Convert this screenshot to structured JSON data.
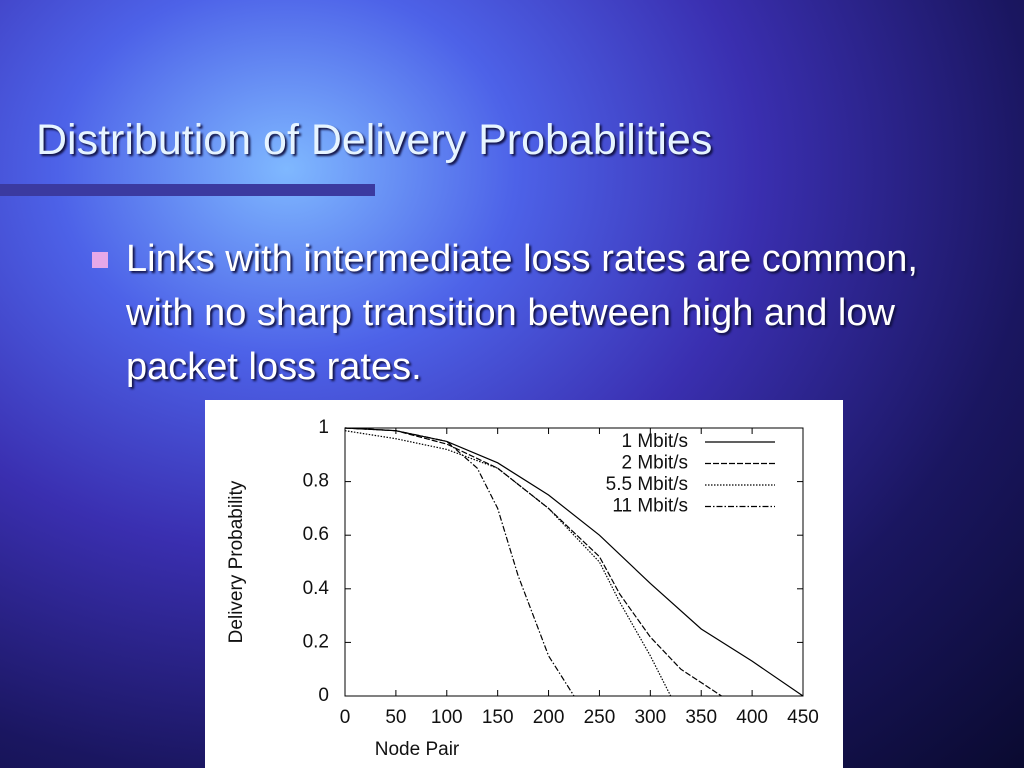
{
  "slide": {
    "title": "Distribution of Delivery Probabilities",
    "bullets": [
      "Links with intermediate loss rates are common, with no sharp transition between high and low packet loss rates."
    ]
  },
  "chart_data": {
    "type": "line",
    "x_label": "Node Pair",
    "y_label": "Delivery Probability",
    "xlim": [
      0,
      450
    ],
    "ylim": [
      0,
      1
    ],
    "xticks": [
      0,
      50,
      100,
      150,
      200,
      250,
      300,
      350,
      400,
      450
    ],
    "yticks": [
      0,
      0.2,
      0.4,
      0.6,
      0.8,
      1
    ],
    "legend": "upper right",
    "series": [
      {
        "name": "1 Mbit/s",
        "color": "#000000",
        "style": "solid",
        "x": [
          0,
          50,
          100,
          150,
          200,
          250,
          300,
          350,
          400,
          450
        ],
        "values": [
          1,
          0.99,
          0.95,
          0.87,
          0.75,
          0.6,
          0.42,
          0.25,
          0.13,
          0
        ]
      },
      {
        "name": "2 Mbit/s",
        "color": "#000000",
        "style": "dashed",
        "x": [
          0,
          50,
          100,
          150,
          200,
          250,
          270,
          300,
          330,
          370
        ],
        "values": [
          1,
          0.99,
          0.94,
          0.85,
          0.7,
          0.52,
          0.38,
          0.22,
          0.1,
          0
        ]
      },
      {
        "name": "5.5 Mbit/s",
        "color": "#000000",
        "style": "dotted",
        "x": [
          0,
          50,
          100,
          150,
          200,
          250,
          270,
          300,
          320
        ],
        "values": [
          0.99,
          0.96,
          0.92,
          0.85,
          0.7,
          0.5,
          0.35,
          0.15,
          0
        ]
      },
      {
        "name": "11 Mbit/s",
        "color": "#000000",
        "style": "dashdot",
        "x": [
          0,
          50,
          100,
          130,
          150,
          170,
          200,
          225
        ],
        "values": [
          1,
          0.99,
          0.95,
          0.85,
          0.7,
          0.45,
          0.15,
          0
        ]
      }
    ]
  }
}
